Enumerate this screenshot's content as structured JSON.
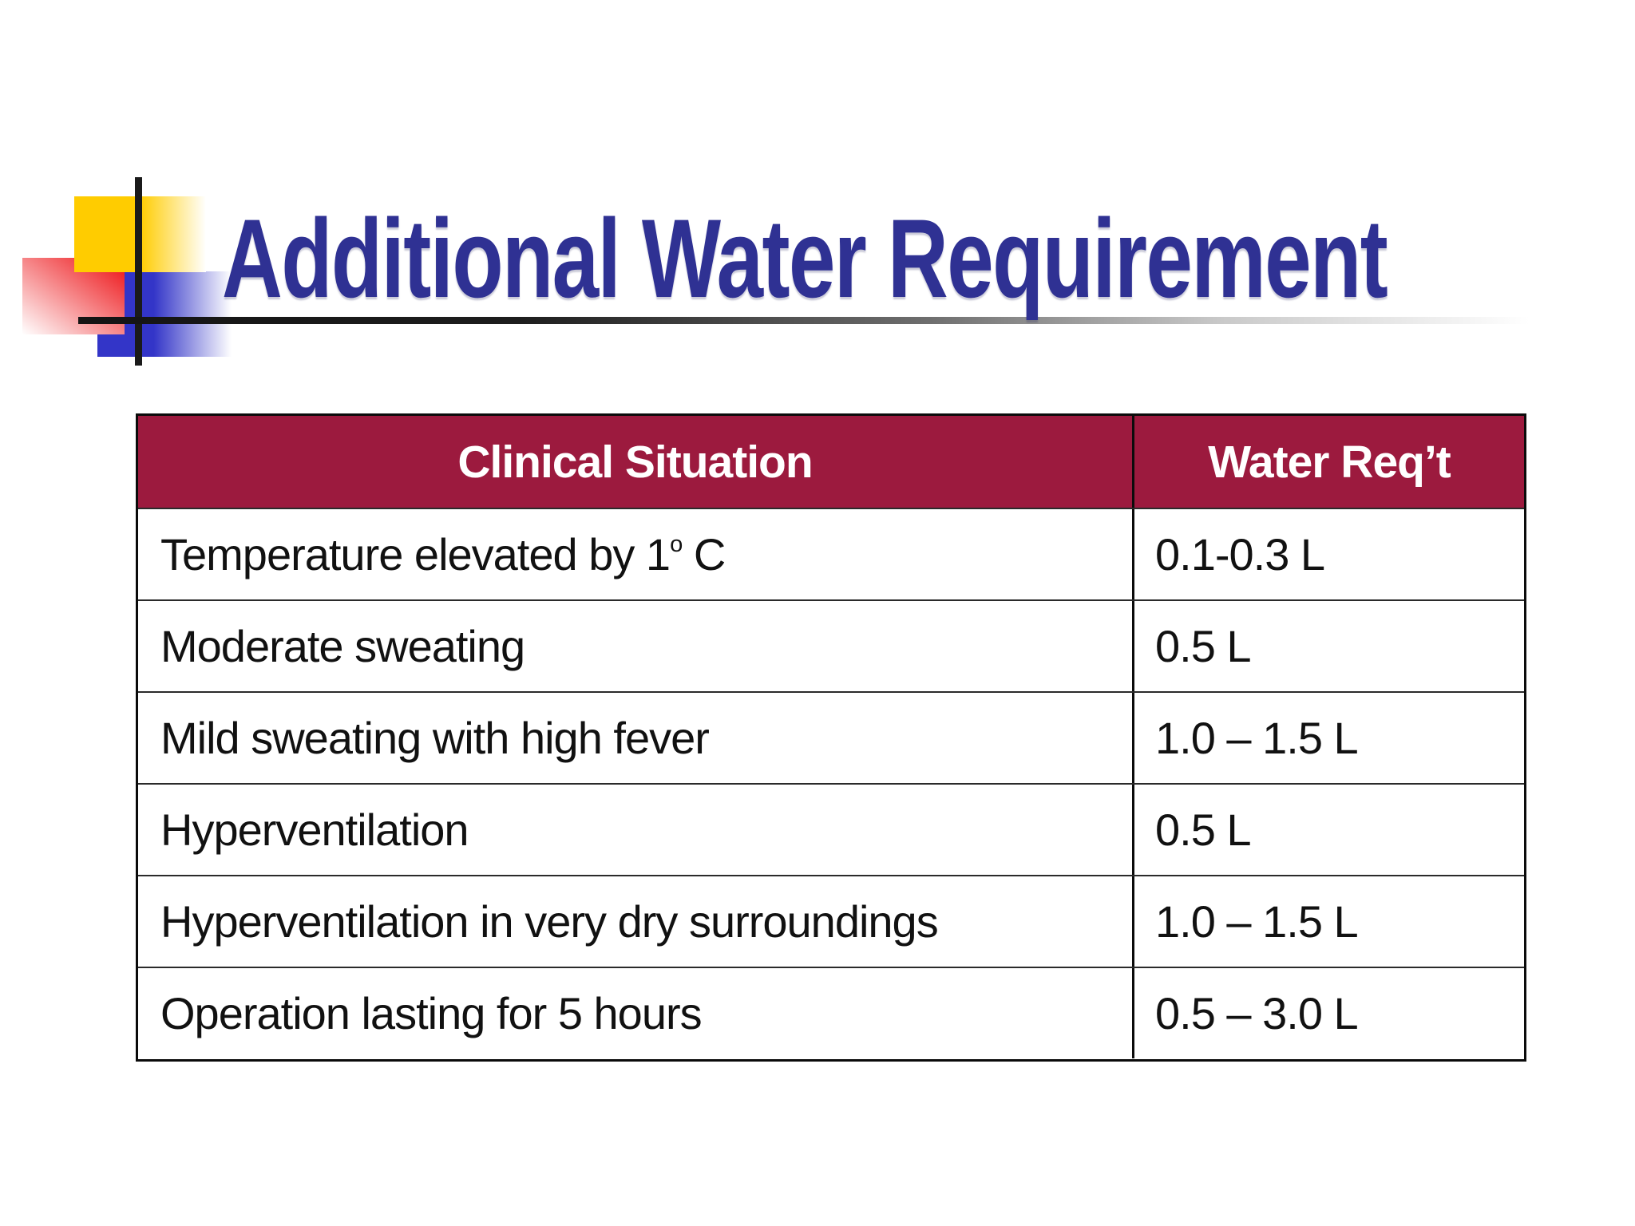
{
  "slide": {
    "title": "Additional Water Requirement"
  },
  "colors": {
    "title-color": "#2F3193",
    "header-bg": "#9C1A3E",
    "decor-yellow": "#FFCC00",
    "decor-red": "#EE2024",
    "decor-blue": "#3335C8",
    "line-color": "#1a1a1a"
  },
  "table": {
    "headers": [
      "Clinical Situation",
      "Water Req’t"
    ],
    "rows": [
      {
        "situation": "Temperature elevated by 1",
        "sup": "o",
        "after": " C",
        "requirement": "0.1-0.3 L"
      },
      {
        "situation": "Moderate sweating",
        "requirement": "0.5 L"
      },
      {
        "situation": "Mild sweating with high fever",
        "requirement": "1.0 – 1.5 L"
      },
      {
        "situation": "Hyperventilation",
        "requirement": "0.5 L"
      },
      {
        "situation": "Hyperventilation in very dry surroundings",
        "requirement": "1.0 – 1.5 L"
      },
      {
        "situation": "Operation lasting for 5 hours",
        "requirement": "0.5 – 3.0 L"
      }
    ]
  }
}
